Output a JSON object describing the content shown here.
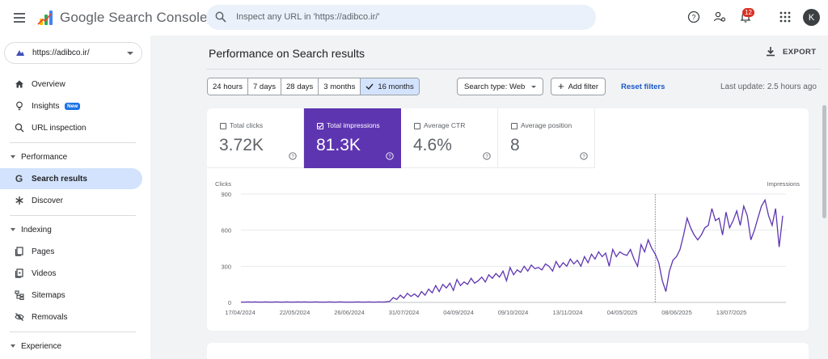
{
  "app": {
    "title": "Google Search Console"
  },
  "search": {
    "placeholder": "Inspect any URL in 'https://adibco.ir/'"
  },
  "header": {
    "notifications": "12",
    "avatar_letter": "K"
  },
  "property": {
    "label": "https://adibco.ir/"
  },
  "sidebar": {
    "overview": "Overview",
    "insights": "Insights",
    "insights_badge": "New",
    "url_inspection": "URL inspection",
    "performance": "Performance",
    "search_results": "Search results",
    "discover": "Discover",
    "indexing": "Indexing",
    "pages": "Pages",
    "videos": "Videos",
    "sitemaps": "Sitemaps",
    "removals": "Removals",
    "experience": "Experience"
  },
  "main": {
    "title": "Performance on Search results",
    "export": "EXPORT",
    "ranges": [
      "24 hours",
      "7 days",
      "28 days",
      "3 months",
      "16 months"
    ],
    "selected_range": "16 months",
    "search_type": "Search type: Web",
    "add_filter": "Add filter",
    "reset_filters": "Reset filters",
    "last_update": "Last update: 2.5 hours ago"
  },
  "metrics": [
    {
      "title": "Total clicks",
      "value": "3.72K",
      "checked": false
    },
    {
      "title": "Total impressions",
      "value": "81.3K",
      "checked": true
    },
    {
      "title": "Average CTR",
      "value": "4.6%",
      "checked": false
    },
    {
      "title": "Average position",
      "value": "8",
      "checked": false
    }
  ],
  "colors": {
    "accent": "#5e35b1",
    "link": "#1a57c8",
    "selected": "#d3e3fd"
  },
  "chart_data": {
    "type": "line",
    "left_axis_label": "Clicks",
    "right_axis_label": "Impressions",
    "y_ticks": [
      "900",
      "600",
      "300",
      "0"
    ],
    "y_tick_values": [
      900,
      600,
      300,
      0
    ],
    "ylim": [
      0,
      900
    ],
    "x_ticks": [
      "17/04/2024",
      "22/05/2024",
      "26/06/2024",
      "31/07/2024",
      "04/09/2024",
      "09/10/2024",
      "13/11/2024",
      "04/05/2025",
      "08/06/2025",
      "13/07/2025"
    ],
    "grid": true,
    "series": [
      {
        "name": "Total impressions",
        "color": "#5e35b1",
        "values": [
          3,
          3,
          4,
          3,
          4,
          3,
          3,
          4,
          3,
          3,
          4,
          3,
          3,
          4,
          3,
          3,
          4,
          3,
          4,
          3,
          3,
          4,
          3,
          3,
          3,
          4,
          3,
          3,
          4,
          3,
          3,
          3,
          3,
          4,
          3,
          3,
          4,
          3,
          3,
          4,
          3,
          5,
          8,
          40,
          25,
          60,
          35,
          75,
          50,
          70,
          45,
          90,
          60,
          110,
          80,
          140,
          90,
          150,
          120,
          160,
          100,
          190,
          140,
          170,
          150,
          200,
          160,
          180,
          210,
          170,
          230,
          200,
          240,
          210,
          260,
          180,
          290,
          230,
          270,
          250,
          300,
          260,
          310,
          280,
          290,
          270,
          320,
          300,
          260,
          340,
          290,
          330,
          300,
          360,
          320,
          350,
          300,
          380,
          330,
          400,
          360,
          420,
          380,
          410,
          300,
          440,
          380,
          420,
          400,
          390,
          440,
          360,
          300,
          480,
          420,
          520,
          450,
          400,
          330,
          180,
          90,
          260,
          350,
          380,
          440,
          560,
          700,
          620,
          560,
          520,
          560,
          620,
          640,
          780,
          680,
          700,
          560,
          750,
          620,
          680,
          760,
          640,
          800,
          720,
          520,
          600,
          700,
          800,
          850,
          720,
          640,
          780,
          460,
          720
        ]
      }
    ],
    "vline_index": 117
  }
}
